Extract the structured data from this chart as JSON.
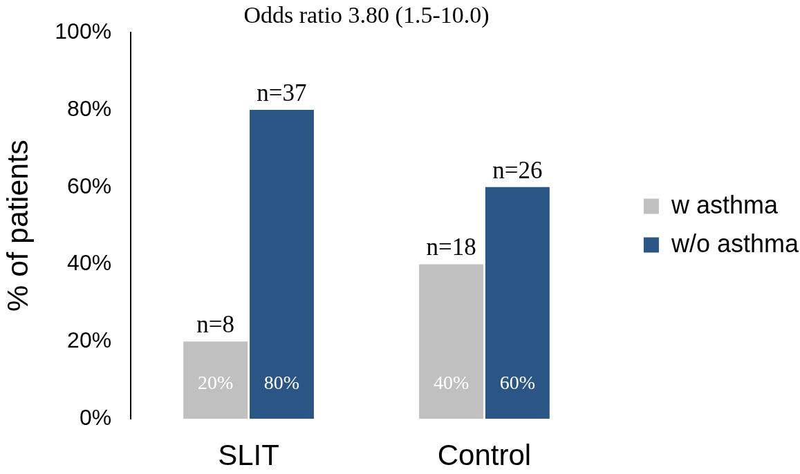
{
  "chart_data": {
    "type": "bar",
    "title": "Odds ratio 3.80 (1.5-10.0)",
    "ylabel": "% of patients",
    "categories": [
      "SLIT",
      "Control"
    ],
    "series": [
      {
        "name": "w asthma",
        "color": "#c0c0c0",
        "values": [
          20,
          40
        ],
        "value_labels": [
          "20%",
          "40%"
        ]
      },
      {
        "name": "w/o asthma",
        "color": "#2b5584",
        "values": [
          80,
          60
        ],
        "value_labels": [
          "80%",
          "60%"
        ]
      }
    ],
    "ylim": [
      0,
      100
    ],
    "yticks": [
      {
        "value": 0,
        "label": "0%"
      },
      {
        "value": 20,
        "label": "20%"
      },
      {
        "value": 40,
        "label": "40%"
      },
      {
        "value": 60,
        "label": "60%"
      },
      {
        "value": 80,
        "label": "80%"
      },
      {
        "value": 100,
        "label": "100%"
      }
    ],
    "grid": false,
    "legend": "right",
    "annotations": [
      {
        "text": "n=8",
        "x": "SLIT",
        "y": 20
      },
      {
        "text": "n=37",
        "x": "SLIT",
        "y": 80
      },
      {
        "text": "n=18",
        "x": "Control",
        "y": 40
      },
      {
        "text": "n=26",
        "x": "Control",
        "y": 60
      }
    ]
  }
}
